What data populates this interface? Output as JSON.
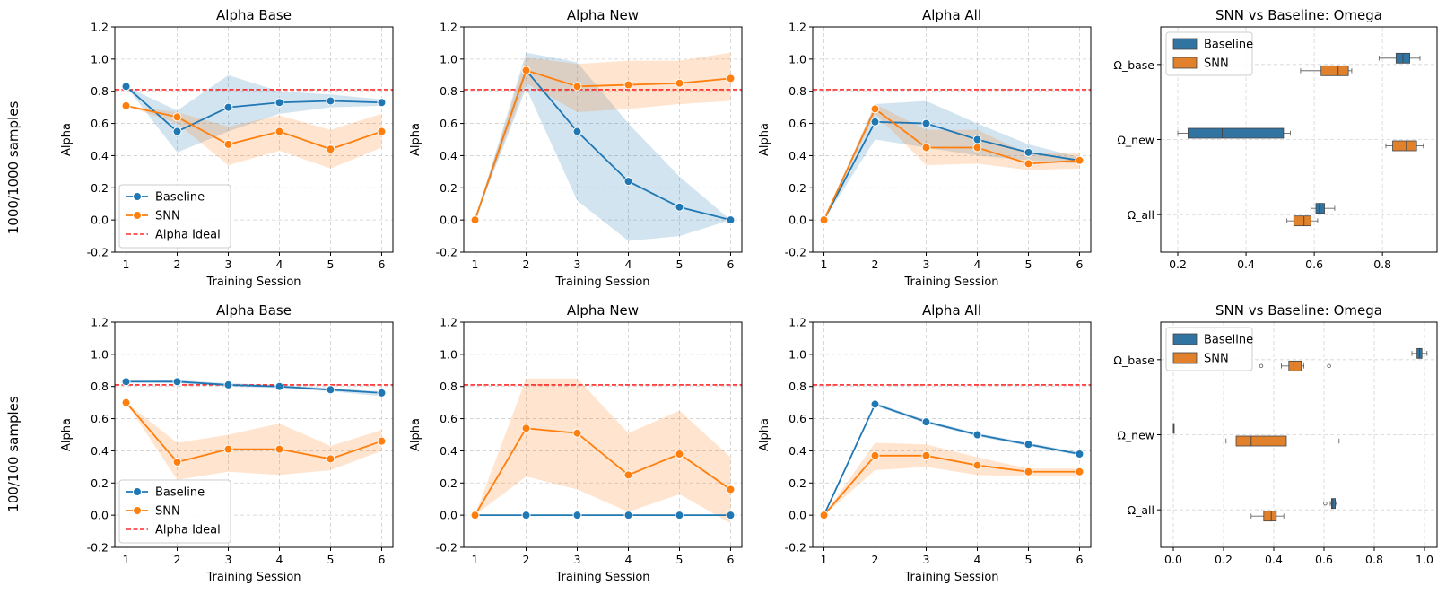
{
  "row_labels": [
    "1000/1000 samples",
    "100/100 samples"
  ],
  "colors": {
    "baseline": "#1f77b4",
    "snn": "#ff7f0e",
    "box_baseline": "#3274a1",
    "box_snn": "#e1812c",
    "ideal": "#ff0000"
  },
  "chart_data": [
    {
      "type": "line",
      "title": "Alpha Base",
      "xlabel": "Training Session",
      "ylabel": "Alpha",
      "x": [
        1,
        2,
        3,
        4,
        5,
        6
      ],
      "ylim": [
        -0.2,
        1.2
      ],
      "yticks": [
        -0.2,
        0.0,
        0.2,
        0.4,
        0.6,
        0.8,
        1.0,
        1.2
      ],
      "ideal": 0.81,
      "legend": {
        "placement": "lower-left",
        "entries": [
          "Baseline",
          "SNN",
          "Alpha Ideal"
        ]
      },
      "grid": true,
      "series": [
        {
          "name": "Baseline",
          "values": [
            0.83,
            0.55,
            0.7,
            0.73,
            0.74,
            0.73
          ],
          "lower": [
            0.83,
            0.42,
            0.55,
            0.66,
            0.7,
            0.71
          ],
          "upper": [
            0.83,
            0.68,
            0.9,
            0.8,
            0.78,
            0.75
          ]
        },
        {
          "name": "SNN",
          "values": [
            0.71,
            0.64,
            0.47,
            0.55,
            0.44,
            0.55
          ],
          "lower": [
            0.71,
            0.6,
            0.34,
            0.43,
            0.32,
            0.45
          ],
          "upper": [
            0.71,
            0.67,
            0.58,
            0.65,
            0.56,
            0.66
          ]
        }
      ]
    },
    {
      "type": "line",
      "title": "Alpha New",
      "xlabel": "Training Session",
      "ylabel": "Alpha",
      "x": [
        1,
        2,
        3,
        4,
        5,
        6
      ],
      "ylim": [
        -0.2,
        1.2
      ],
      "yticks": [
        -0.2,
        0.0,
        0.2,
        0.4,
        0.6,
        0.8,
        1.0,
        1.2
      ],
      "ideal": 0.81,
      "grid": true,
      "series": [
        {
          "name": "Baseline",
          "values": [
            0.0,
            0.93,
            0.55,
            0.24,
            0.08,
            0.0
          ],
          "lower": [
            0.0,
            0.82,
            0.12,
            -0.13,
            -0.1,
            0.0
          ],
          "upper": [
            0.0,
            1.04,
            0.98,
            0.6,
            0.27,
            0.0
          ]
        },
        {
          "name": "SNN",
          "values": [
            0.0,
            0.93,
            0.83,
            0.84,
            0.85,
            0.88
          ],
          "lower": [
            0.0,
            0.85,
            0.67,
            0.69,
            0.72,
            0.74
          ],
          "upper": [
            0.0,
            1.01,
            0.97,
            0.99,
            0.99,
            1.04
          ]
        }
      ]
    },
    {
      "type": "line",
      "title": "Alpha All",
      "xlabel": "Training Session",
      "ylabel": "Alpha",
      "x": [
        1,
        2,
        3,
        4,
        5,
        6
      ],
      "ylim": [
        -0.2,
        1.2
      ],
      "yticks": [
        -0.2,
        0.0,
        0.2,
        0.4,
        0.6,
        0.8,
        1.0,
        1.2
      ],
      "ideal": 0.81,
      "grid": true,
      "series": [
        {
          "name": "Baseline",
          "values": [
            0.0,
            0.61,
            0.6,
            0.5,
            0.42,
            0.37
          ],
          "lower": [
            0.0,
            0.5,
            0.45,
            0.4,
            0.37,
            0.35
          ],
          "upper": [
            0.0,
            0.72,
            0.74,
            0.6,
            0.47,
            0.39
          ]
        },
        {
          "name": "SNN",
          "values": [
            0.0,
            0.69,
            0.45,
            0.45,
            0.35,
            0.37
          ],
          "lower": [
            0.0,
            0.66,
            0.34,
            0.35,
            0.31,
            0.32
          ],
          "upper": [
            0.0,
            0.72,
            0.56,
            0.56,
            0.41,
            0.42
          ]
        }
      ]
    },
    {
      "type": "box",
      "title": "SNN vs Baseline: Omega",
      "categories": [
        "Ω_base",
        "Ω_new",
        "Ω_all"
      ],
      "xlim": [
        0.15,
        0.96
      ],
      "xticks": [
        0.2,
        0.4,
        0.6,
        0.8
      ],
      "grid": true,
      "legend": {
        "placement": "top-left",
        "entries": [
          "Baseline",
          "SNN"
        ]
      },
      "series": [
        {
          "name": "Baseline",
          "boxes": [
            {
              "min": 0.79,
              "q1": 0.84,
              "median": 0.86,
              "q3": 0.88,
              "max": 0.91,
              "outliers": []
            },
            {
              "min": 0.2,
              "q1": 0.23,
              "median": 0.33,
              "q3": 0.51,
              "max": 0.53,
              "outliers": []
            },
            {
              "min": 0.59,
              "q1": 0.605,
              "median": 0.615,
              "q3": 0.63,
              "max": 0.66,
              "outliers": []
            }
          ]
        },
        {
          "name": "SNN",
          "boxes": [
            {
              "min": 0.56,
              "q1": 0.62,
              "median": 0.67,
              "q3": 0.7,
              "max": 0.71,
              "outliers": []
            },
            {
              "min": 0.81,
              "q1": 0.83,
              "median": 0.87,
              "q3": 0.9,
              "max": 0.92,
              "outliers": []
            },
            {
              "min": 0.52,
              "q1": 0.54,
              "median": 0.57,
              "q3": 0.59,
              "max": 0.61,
              "outliers": []
            }
          ]
        }
      ]
    },
    {
      "type": "line",
      "title": "Alpha Base",
      "xlabel": "Training Session",
      "ylabel": "Alpha",
      "x": [
        1,
        2,
        3,
        4,
        5,
        6
      ],
      "ylim": [
        -0.2,
        1.2
      ],
      "yticks": [
        -0.2,
        0.0,
        0.2,
        0.4,
        0.6,
        0.8,
        1.0,
        1.2
      ],
      "ideal": 0.81,
      "legend": {
        "placement": "lower-left",
        "entries": [
          "Baseline",
          "SNN",
          "Alpha Ideal"
        ]
      },
      "grid": true,
      "series": [
        {
          "name": "Baseline",
          "values": [
            0.83,
            0.83,
            0.81,
            0.8,
            0.78,
            0.76
          ],
          "lower": [
            0.83,
            0.82,
            0.8,
            0.79,
            0.77,
            0.74
          ],
          "upper": [
            0.83,
            0.84,
            0.82,
            0.81,
            0.79,
            0.77
          ]
        },
        {
          "name": "SNN",
          "values": [
            0.7,
            0.33,
            0.41,
            0.41,
            0.35,
            0.46
          ],
          "lower": [
            0.7,
            0.22,
            0.27,
            0.25,
            0.28,
            0.4
          ],
          "upper": [
            0.7,
            0.45,
            0.5,
            0.57,
            0.43,
            0.53
          ]
        }
      ]
    },
    {
      "type": "line",
      "title": "Alpha New",
      "xlabel": "Training Session",
      "ylabel": "Alpha",
      "x": [
        1,
        2,
        3,
        4,
        5,
        6
      ],
      "ylim": [
        -0.2,
        1.2
      ],
      "yticks": [
        -0.2,
        0.0,
        0.2,
        0.4,
        0.6,
        0.8,
        1.0,
        1.2
      ],
      "ideal": 0.81,
      "grid": true,
      "series": [
        {
          "name": "Baseline",
          "values": [
            0.0,
            0.0,
            0.0,
            0.0,
            0.0,
            0.0
          ],
          "lower": [
            0.0,
            0.0,
            0.0,
            0.0,
            0.0,
            0.0
          ],
          "upper": [
            0.0,
            0.0,
            0.0,
            0.0,
            0.0,
            0.0
          ]
        },
        {
          "name": "SNN",
          "values": [
            0.0,
            0.54,
            0.51,
            0.25,
            0.38,
            0.16
          ],
          "lower": [
            0.0,
            0.24,
            0.16,
            0.02,
            0.13,
            -0.05
          ],
          "upper": [
            0.0,
            0.85,
            0.85,
            0.51,
            0.65,
            0.36
          ]
        }
      ]
    },
    {
      "type": "line",
      "title": "Alpha All",
      "xlabel": "Training Session",
      "ylabel": "Alpha",
      "x": [
        1,
        2,
        3,
        4,
        5,
        6
      ],
      "ylim": [
        -0.2,
        1.2
      ],
      "yticks": [
        -0.2,
        0.0,
        0.2,
        0.4,
        0.6,
        0.8,
        1.0,
        1.2
      ],
      "ideal": 0.81,
      "grid": true,
      "series": [
        {
          "name": "Baseline",
          "values": [
            0.0,
            0.69,
            0.58,
            0.5,
            0.44,
            0.38
          ],
          "lower": [
            0.0,
            0.68,
            0.57,
            0.49,
            0.43,
            0.37
          ],
          "upper": [
            0.0,
            0.7,
            0.59,
            0.51,
            0.45,
            0.39
          ]
        },
        {
          "name": "SNN",
          "values": [
            0.0,
            0.37,
            0.37,
            0.31,
            0.27,
            0.27
          ],
          "lower": [
            0.0,
            0.28,
            0.3,
            0.25,
            0.24,
            0.24
          ],
          "upper": [
            0.0,
            0.45,
            0.44,
            0.36,
            0.29,
            0.29
          ]
        }
      ]
    },
    {
      "type": "box",
      "title": "SNN vs Baseline: Omega",
      "categories": [
        "Ω_base",
        "Ω_new",
        "Ω_all"
      ],
      "xlim": [
        -0.05,
        1.05
      ],
      "xticks": [
        0.0,
        0.2,
        0.4,
        0.6,
        0.8,
        1.0
      ],
      "grid": true,
      "legend": {
        "placement": "top-left",
        "entries": [
          "Baseline",
          "SNN"
        ]
      },
      "series": [
        {
          "name": "Baseline",
          "boxes": [
            {
              "min": 0.95,
              "q1": 0.97,
              "median": 0.98,
              "q3": 0.99,
              "max": 1.01,
              "outliers": []
            },
            {
              "min": 0.0,
              "q1": 0.0,
              "median": 0.0,
              "q3": 0.0,
              "max": 0.0,
              "outliers": []
            },
            {
              "min": 0.625,
              "q1": 0.63,
              "median": 0.635,
              "q3": 0.645,
              "max": 0.65,
              "outliers": [
                0.605
              ]
            }
          ]
        },
        {
          "name": "SNN",
          "boxes": [
            {
              "min": 0.43,
              "q1": 0.46,
              "median": 0.48,
              "q3": 0.51,
              "max": 0.52,
              "outliers": [
                0.35,
                0.62
              ]
            },
            {
              "min": 0.21,
              "q1": 0.25,
              "median": 0.31,
              "q3": 0.45,
              "max": 0.66,
              "outliers": []
            },
            {
              "min": 0.31,
              "q1": 0.36,
              "median": 0.39,
              "q3": 0.41,
              "max": 0.44,
              "outliers": []
            }
          ]
        }
      ]
    }
  ]
}
